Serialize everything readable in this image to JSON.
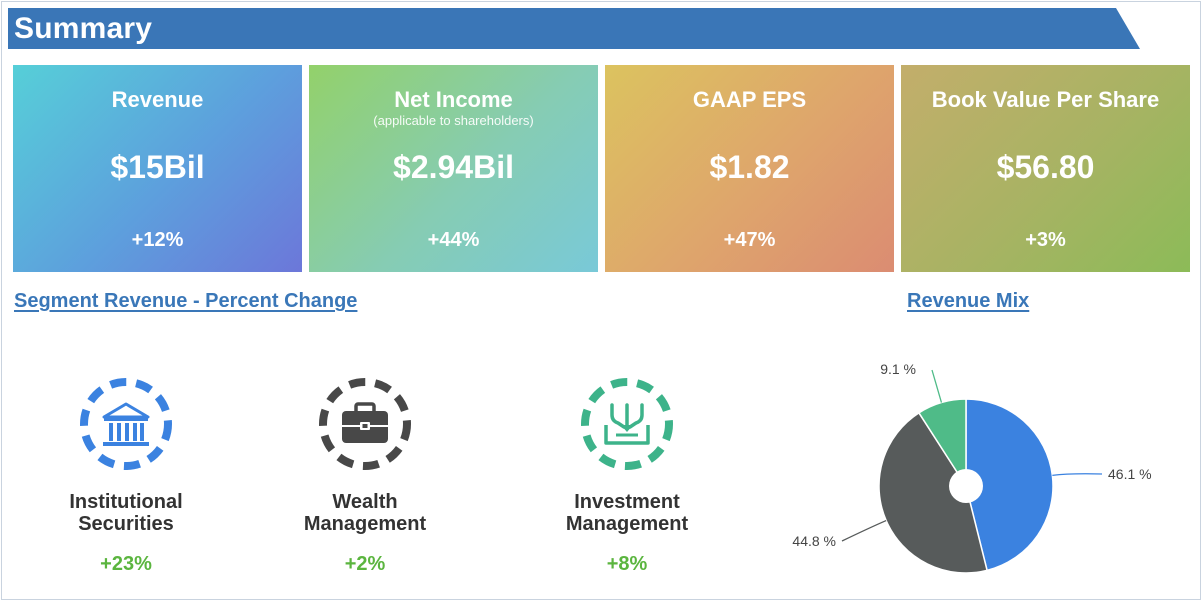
{
  "header": {
    "title": "Summary",
    "color": "#3a76b7"
  },
  "cards": [
    {
      "title": "Revenue",
      "subtitle": "",
      "value": "$15Bil",
      "change": "+12%"
    },
    {
      "title": "Net Income",
      "subtitle": "(applicable to shareholders)",
      "value": "$2.94Bil",
      "change": "+44%"
    },
    {
      "title": "GAAP EPS",
      "subtitle": "",
      "value": "$1.82",
      "change": "+47%"
    },
    {
      "title": "Book Value Per Share",
      "subtitle": "",
      "value": "$56.80",
      "change": "+3%"
    }
  ],
  "segments_section": {
    "title": "Segment Revenue - Percent Change"
  },
  "segments": [
    {
      "label": "Institutional\nSecurities",
      "change": "+23%",
      "icon": "bank-icon",
      "color": "#3b82e0"
    },
    {
      "label": "Wealth\nManagement",
      "change": "+2%",
      "icon": "briefcase-icon",
      "color": "#484848"
    },
    {
      "label": "Investment\nManagement",
      "change": "+8%",
      "icon": "inbox-arrows-icon",
      "color": "#3db38a"
    }
  ],
  "mix_section": {
    "title": "Revenue Mix"
  },
  "chart_data": {
    "type": "pie",
    "donut_hole": true,
    "slices": [
      {
        "value": 46.1,
        "label": "46.1 %",
        "color": "#3b82e0"
      },
      {
        "value": 44.8,
        "label": "44.8 %",
        "color": "#575b5b"
      },
      {
        "value": 9.1,
        "label": "9.1 %",
        "color": "#4fbb88"
      }
    ],
    "legend": "none"
  },
  "colors": {
    "positive": "#5bb53f",
    "link": "#3a77b8"
  }
}
